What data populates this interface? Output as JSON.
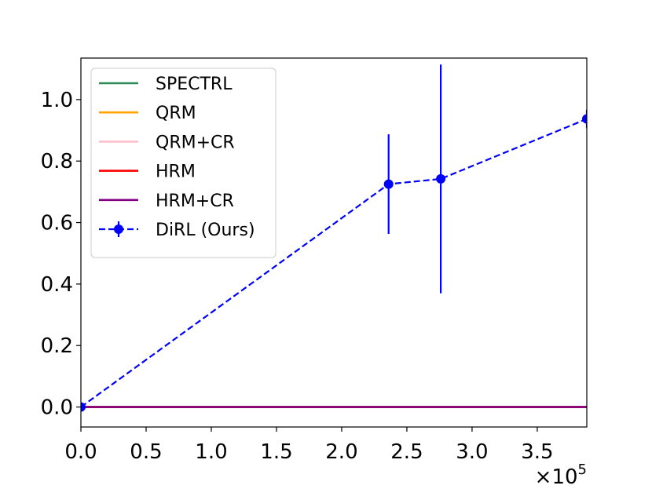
{
  "chart_data": {
    "type": "line",
    "title": "",
    "xlabel": "",
    "ylabel": "",
    "x_offset_text": "×10",
    "x_offset_exp": "5",
    "xlim": [
      0,
      388000
    ],
    "ylim": [
      -0.065,
      1.135
    ],
    "x_ticks": [
      0,
      50000,
      100000,
      150000,
      200000,
      250000,
      300000,
      350000
    ],
    "x_tick_labels": [
      "0.0",
      "0.5",
      "1.0",
      "1.5",
      "2.0",
      "2.5",
      "3.0",
      "3.5"
    ],
    "y_ticks": [
      0.0,
      0.2,
      0.4,
      0.6,
      0.8,
      1.0
    ],
    "y_tick_labels": [
      "0.0",
      "0.2",
      "0.4",
      "0.6",
      "0.8",
      "1.0"
    ],
    "grid": false,
    "legend_position": "top-left",
    "series": [
      {
        "name": "SPECTRL",
        "color": "#2e8b57",
        "style": "solid",
        "x": [
          0,
          388000
        ],
        "y": [
          0.0,
          0.0
        ]
      },
      {
        "name": "QRM",
        "color": "#ffa500",
        "style": "solid",
        "x": [
          0,
          388000
        ],
        "y": [
          0.0,
          0.0
        ]
      },
      {
        "name": "QRM+CR",
        "color": "#ffc0cb",
        "style": "solid",
        "x": [
          0,
          388000
        ],
        "y": [
          0.0,
          0.0
        ]
      },
      {
        "name": "HRM",
        "color": "#ff0000",
        "style": "solid",
        "x": [
          0,
          388000
        ],
        "y": [
          0.0,
          0.0
        ]
      },
      {
        "name": "HRM+CR",
        "color": "#800080",
        "style": "solid",
        "x": [
          0,
          388000
        ],
        "y": [
          0.0,
          0.0
        ]
      },
      {
        "name": "DiRL (Ours)",
        "color": "#0000ff",
        "style": "dashed",
        "markers": true,
        "x": [
          0,
          236000,
          276000,
          388000
        ],
        "y": [
          0.0,
          0.725,
          0.742,
          0.937
        ],
        "yerr": [
          0.0,
          0.162,
          0.372,
          0.03
        ]
      }
    ]
  }
}
